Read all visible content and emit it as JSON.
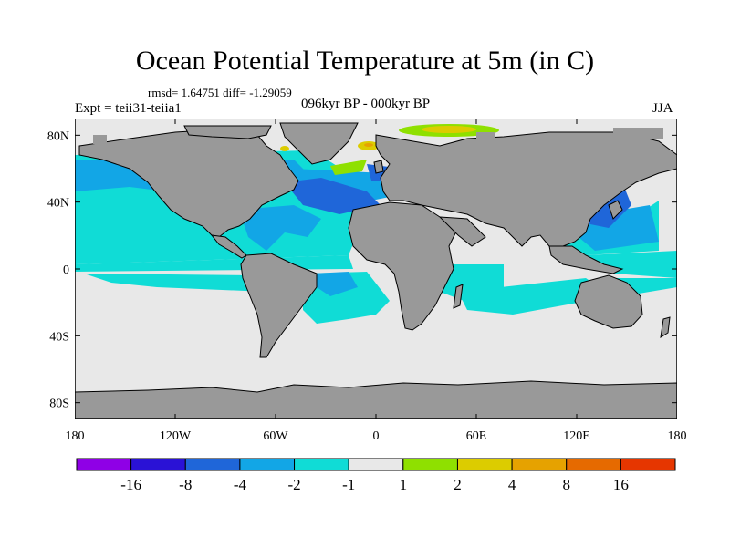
{
  "title": "Ocean Potential Temperature at 5m (in C)",
  "stats": "rmsd= 1.64751 diff= -1.29059",
  "experiment": "Expt = teii31-teiia1",
  "period": "096kyr BP - 000kyr BP",
  "season": "JJA",
  "lat_labels": [
    {
      "lat": 80,
      "label": "80N"
    },
    {
      "lat": 40,
      "label": "40N"
    },
    {
      "lat": 0,
      "label": "0"
    },
    {
      "lat": -40,
      "label": "40S"
    },
    {
      "lat": -80,
      "label": "80S"
    }
  ],
  "lon_labels": [
    {
      "lon": -180,
      "label": "180"
    },
    {
      "lon": -120,
      "label": "120W"
    },
    {
      "lon": -60,
      "label": "60W"
    },
    {
      "lon": 0,
      "label": "0"
    },
    {
      "lon": 60,
      "label": "60E"
    },
    {
      "lon": 120,
      "label": "120E"
    },
    {
      "lon": 180,
      "label": "180"
    }
  ],
  "lat_range": [
    -90,
    90
  ],
  "lon_range": [
    -180,
    180
  ],
  "colorbar": {
    "colors": [
      "#8f00e6",
      "#2a12d6",
      "#1f66d9",
      "#12a6e6",
      "#10dcd6",
      "#e8e8e8",
      "#8fe000",
      "#dccc00",
      "#e6a200",
      "#e66a00",
      "#e63600"
    ],
    "levels": [
      "-16",
      "-8",
      "-4",
      "-2",
      "-1",
      "1",
      "2",
      "4",
      "8",
      "16"
    ]
  },
  "colors": {
    "land": "#999999",
    "neutral_ocean": "#e8e8e8",
    "cooling_1_2": "#10dcd6",
    "cooling_2_4": "#12a6e6",
    "cooling_4_8": "#1f66d9",
    "cooling_8_16": "#2a12d6",
    "warming_1_2": "#8fe000",
    "warming_2_4": "#dccc00",
    "warming_4_8": "#e6a200"
  }
}
